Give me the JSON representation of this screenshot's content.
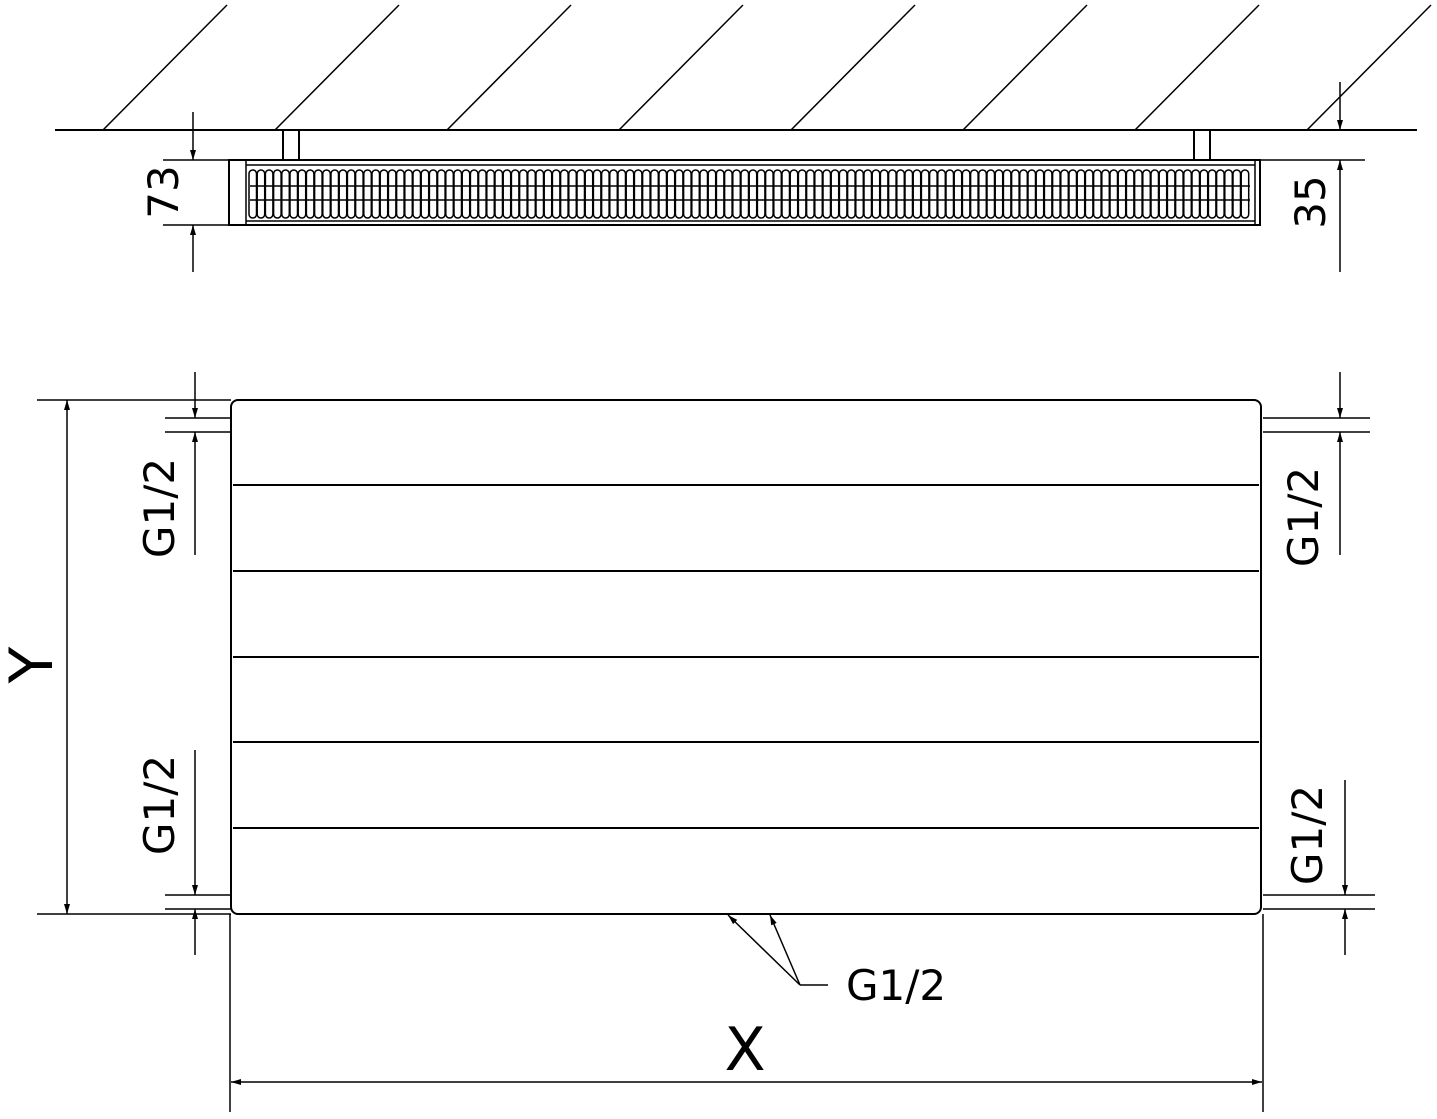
{
  "top_view": {
    "depth_label": "73",
    "wall_distance_label": "35"
  },
  "front_view": {
    "height_label": "Y",
    "width_label": "X",
    "connection_left_top": "G1/2",
    "connection_left_bottom": "G1/2",
    "connection_right_top": "G1/2",
    "connection_right_bottom": "G1/2",
    "connection_bottom": "G1/2"
  }
}
